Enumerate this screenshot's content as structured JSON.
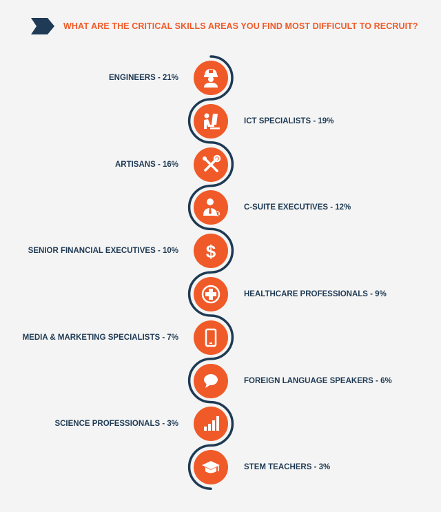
{
  "header": {
    "question": "WHAT ARE THE CRITICAL SKILLS AREAS YOU FIND MOST DIFFICULT TO RECRUIT?"
  },
  "colors": {
    "accent": "#f05a28",
    "navy": "#1e3a54",
    "background": "#f4f4f4"
  },
  "items": [
    {
      "label": "ENGINEERS - 21%",
      "side": "left",
      "icon": "engineer-icon"
    },
    {
      "label": "ICT SPECIALISTS - 19%",
      "side": "right",
      "icon": "computer-user-icon"
    },
    {
      "label": "ARTISANS - 16%",
      "side": "left",
      "icon": "tools-icon"
    },
    {
      "label": "C-SUITE EXECUTIVES - 12%",
      "side": "right",
      "icon": "executive-icon"
    },
    {
      "label": "SENIOR FINANCIAL EXECUTIVES - 10%",
      "side": "left",
      "icon": "dollar-icon"
    },
    {
      "label": "HEALTHCARE PROFESSIONALS - 9%",
      "side": "right",
      "icon": "medical-cross-icon"
    },
    {
      "label": "MEDIA & MARKETING SPECIALISTS - 7%",
      "side": "left",
      "icon": "mobile-phone-icon"
    },
    {
      "label": "FOREIGN LANGUAGE SPEAKERS - 6%",
      "side": "right",
      "icon": "speech-bubble-icon"
    },
    {
      "label": "SCIENCE PROFESSIONALS - 3%",
      "side": "left",
      "icon": "bar-chart-icon"
    },
    {
      "label": "STEM TEACHERS - 3%",
      "side": "right",
      "icon": "graduation-cap-icon"
    }
  ]
}
